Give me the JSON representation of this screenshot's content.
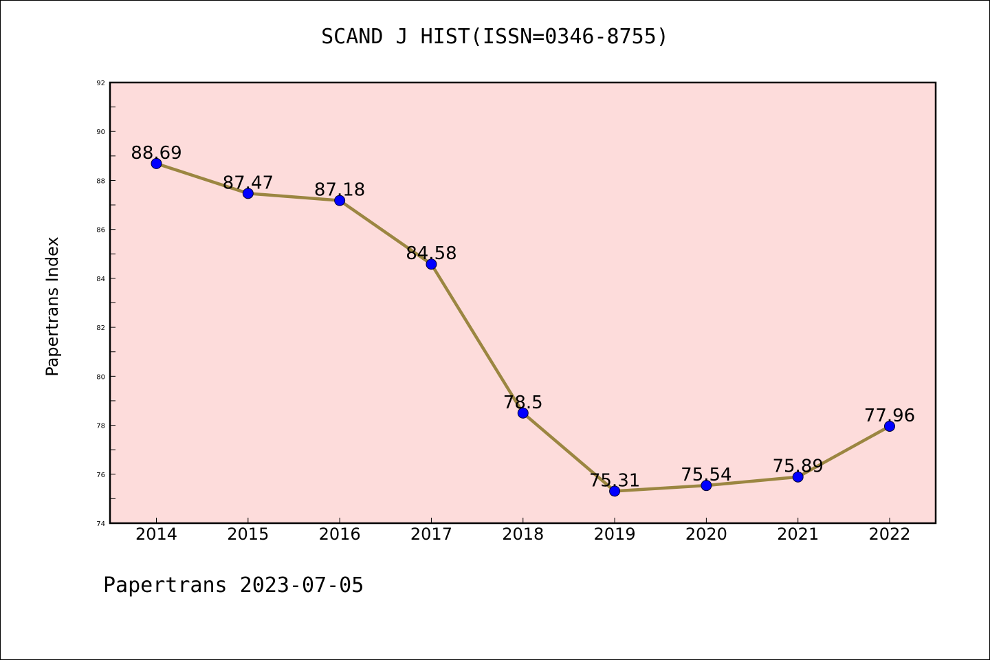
{
  "title": "SCAND J HIST(ISSN=0346-8755)",
  "footer": "Papertrans 2023-07-05",
  "colors": {
    "plot_background": "#fddcdb",
    "line": "#9b8641",
    "marker": "#0000ff"
  },
  "chart_data": {
    "type": "line",
    "title": "SCAND J HIST(ISSN=0346-8755)",
    "xlabel": "",
    "ylabel": "Papertrans Index",
    "categories": [
      "2014",
      "2015",
      "2016",
      "2017",
      "2018",
      "2019",
      "2020",
      "2021",
      "2022"
    ],
    "series": [
      {
        "values": [
          88.69,
          87.47,
          87.18,
          84.58,
          78.5,
          75.31,
          75.54,
          75.89,
          77.96
        ],
        "labels": [
          "88.69",
          "87.47",
          "87.18",
          "84.58",
          "78.5",
          "75.31",
          "75.54",
          "75.89",
          "77.96"
        ]
      }
    ],
    "ylim": [
      74,
      92
    ],
    "yticks": [
      74,
      76,
      78,
      80,
      82,
      84,
      86,
      88,
      90,
      92
    ],
    "grid": false,
    "legend": "none"
  }
}
